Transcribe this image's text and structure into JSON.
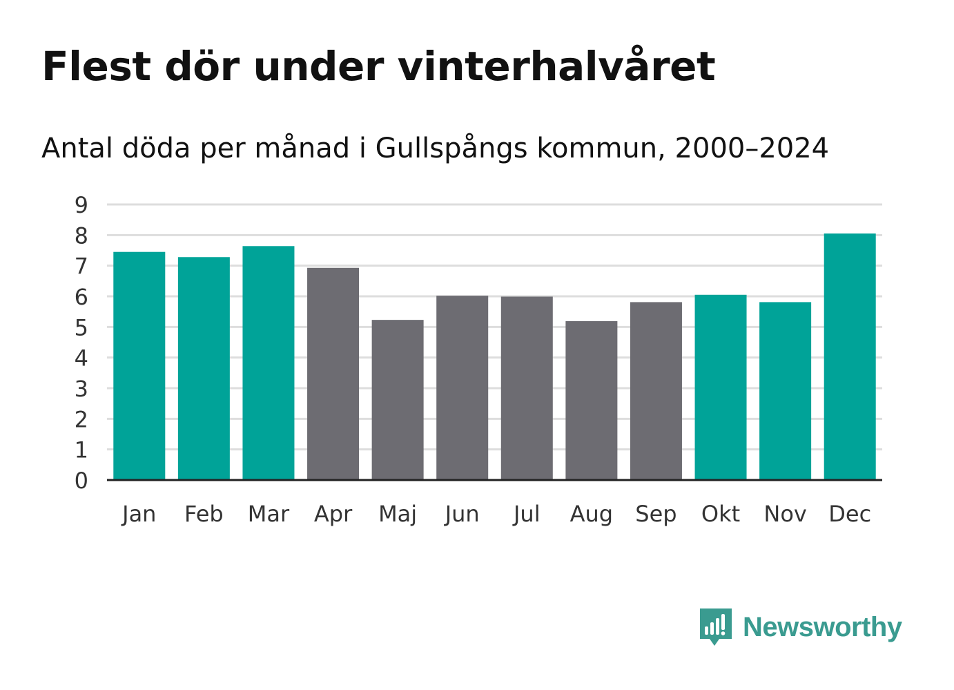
{
  "title": "Flest dör under vinterhalvåret",
  "subtitle": "Antal döda per månad i Gullspångs kommun, 2000–2024",
  "brand": {
    "name": "Newsworthy",
    "color": "#3a9b90"
  },
  "colors": {
    "highlight": "#00a398",
    "muted": "#6d6c72",
    "grid": "#dddddd",
    "axis": "#222222"
  },
  "chart_data": {
    "type": "bar",
    "title": "Flest dör under vinterhalvåret",
    "subtitle": "Antal döda per månad i Gullspångs kommun, 2000–2024",
    "xlabel": "",
    "ylabel": "",
    "ylim": [
      0,
      9
    ],
    "yticks": [
      "0",
      "1",
      "2",
      "3",
      "4",
      "5",
      "6",
      "7",
      "8",
      "9"
    ],
    "grid": true,
    "categories": [
      "Jan",
      "Feb",
      "Mar",
      "Apr",
      "Maj",
      "Jun",
      "Jul",
      "Aug",
      "Sep",
      "Okt",
      "Nov",
      "Dec"
    ],
    "values": [
      7.45,
      7.28,
      7.64,
      6.93,
      5.23,
      6.02,
      5.99,
      5.19,
      5.81,
      6.05,
      5.81,
      8.05
    ],
    "highlight": [
      true,
      true,
      true,
      false,
      false,
      false,
      false,
      false,
      false,
      true,
      true,
      true
    ]
  }
}
